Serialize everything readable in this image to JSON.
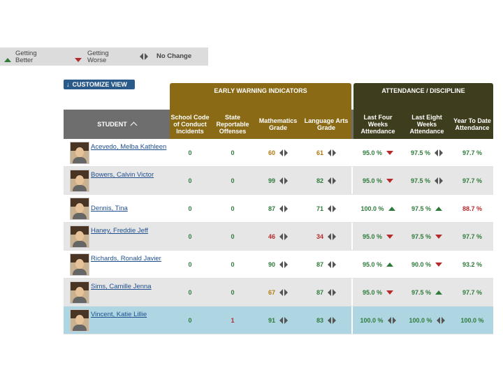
{
  "legend": {
    "better": "Getting Better",
    "worse": "Getting Worse",
    "nochange": "No Change"
  },
  "customize_label": "CUSTOMIZE VIEW",
  "groups": {
    "ewi": "EARLY WARNING INDICATORS",
    "att": "ATTENDANCE / DISCIPLINE"
  },
  "columns": {
    "student": "STUDENT",
    "conduct": "School Code of Conduct Incidents",
    "offenses": "State Reportable Offenses",
    "math": "Mathematics Grade",
    "lang": "Language Arts Grade",
    "four": "Last Four Weeks Attendance",
    "eight": "Last Eight Weeks Attendance",
    "ytd": "Year To Date Attendance"
  },
  "rows": [
    {
      "name": "Acevedo, Melba Kathleen",
      "conduct": "0",
      "offenses": "0",
      "math": "60",
      "math_color": "gold",
      "math_ind": "nochange",
      "lang": "61",
      "lang_color": "gold",
      "lang_ind": "nochange",
      "four": "95.0 %",
      "four_ind": "worse",
      "eight": "97.5 %",
      "eight_ind": "nochange",
      "ytd": "97.7 %",
      "ytd_color": "green"
    },
    {
      "name": "Bowers, Calvin Victor",
      "conduct": "0",
      "offenses": "0",
      "math": "99",
      "math_color": "green",
      "math_ind": "nochange",
      "lang": "82",
      "lang_color": "green",
      "lang_ind": "nochange",
      "four": "95.0 %",
      "four_ind": "worse",
      "eight": "97.5 %",
      "eight_ind": "nochange",
      "ytd": "97.7 %",
      "ytd_color": "green"
    },
    {
      "name": "Dennis, Tina",
      "conduct": "0",
      "offenses": "0",
      "math": "87",
      "math_color": "green",
      "math_ind": "nochange",
      "lang": "71",
      "lang_color": "green",
      "lang_ind": "nochange",
      "four": "100.0 %",
      "four_ind": "better",
      "eight": "97.5 %",
      "eight_ind": "better",
      "ytd": "88.7 %",
      "ytd_color": "red"
    },
    {
      "name": "Haney, Freddie Jeff",
      "conduct": "0",
      "offenses": "0",
      "math": "46",
      "math_color": "red",
      "math_ind": "nochange",
      "lang": "34",
      "lang_color": "red",
      "lang_ind": "nochange",
      "four": "95.0 %",
      "four_ind": "worse",
      "eight": "97.5 %",
      "eight_ind": "worse",
      "ytd": "97.7 %",
      "ytd_color": "green"
    },
    {
      "name": "Richards, Ronald Javier",
      "conduct": "0",
      "offenses": "0",
      "math": "90",
      "math_color": "green",
      "math_ind": "nochange",
      "lang": "87",
      "lang_color": "green",
      "lang_ind": "nochange",
      "four": "95.0 %",
      "four_ind": "better",
      "eight": "90.0 %",
      "eight_ind": "worse",
      "ytd": "93.2 %",
      "ytd_color": "green"
    },
    {
      "name": "Sims, Camille Jenna",
      "conduct": "0",
      "offenses": "0",
      "math": "67",
      "math_color": "gold",
      "math_ind": "nochange",
      "lang": "87",
      "lang_color": "green",
      "lang_ind": "nochange",
      "four": "95.0 %",
      "four_ind": "worse",
      "eight": "97.5 %",
      "eight_ind": "better",
      "ytd": "97.7 %",
      "ytd_color": "green"
    },
    {
      "name": "Vincent, Katie Lillie",
      "conduct": "0",
      "offenses": "1",
      "offenses_color": "red",
      "math": "91",
      "math_color": "green",
      "math_ind": "nochange",
      "lang": "83",
      "lang_color": "green",
      "lang_ind": "nochange",
      "four": "100.0 %",
      "four_ind": "nochange",
      "eight": "100.0 %",
      "eight_ind": "nochange",
      "ytd": "100.0 %",
      "ytd_color": "green",
      "selected": true
    }
  ]
}
